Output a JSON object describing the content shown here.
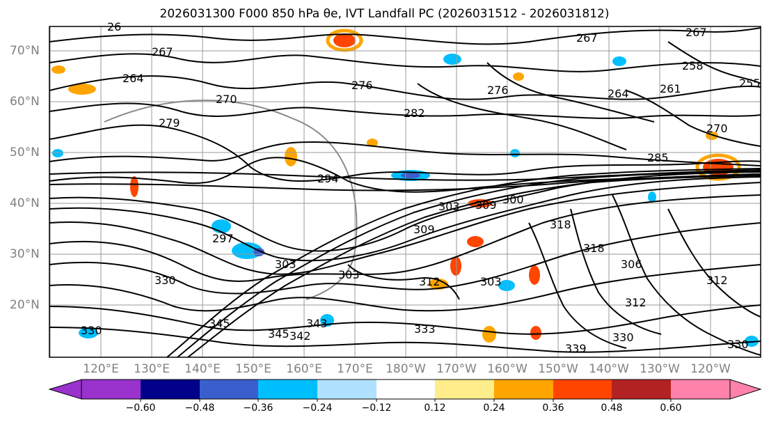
{
  "title": "2026031300 F000 850 hPa θe, IVT Landfall PC (2026031512 - 2026031812)",
  "map": {
    "lat_labels": [
      "70°N",
      "60°N",
      "50°N",
      "40°N",
      "30°N",
      "20°N"
    ],
    "lon_labels": [
      "120°E",
      "130°E",
      "140°E",
      "150°E",
      "160°E",
      "170°E",
      "180°W",
      "170°W",
      "160°W",
      "150°W",
      "140°W",
      "130°W",
      "120°W"
    ],
    "contour_labels": [
      "267",
      "267",
      "267",
      "258",
      "261",
      "255",
      "264",
      "270",
      "285",
      "279",
      "276",
      "282",
      "276",
      "294",
      "297",
      "300",
      "303",
      "309",
      "303",
      "318",
      "306",
      "312",
      "312",
      "303",
      "303",
      "345",
      "342",
      "343",
      "345",
      "330",
      "330",
      "333",
      "339",
      "330",
      "330",
      "312",
      "309",
      "318",
      "26",
      "264",
      "270"
    ]
  },
  "colorbar": {
    "ticks": [
      "−0.60",
      "−0.48",
      "−0.36",
      "−0.24",
      "−0.12",
      "0.12",
      "0.24",
      "0.36",
      "0.48",
      "0.60"
    ],
    "colors": [
      "#9a32cd",
      "#00008b",
      "#3a5fcd",
      "#00bfff",
      "#b0e2ff",
      "#ffffff",
      "#ffec8b",
      "#ffa500",
      "#ff4500",
      "#b22222",
      "#ff82ab"
    ]
  }
}
